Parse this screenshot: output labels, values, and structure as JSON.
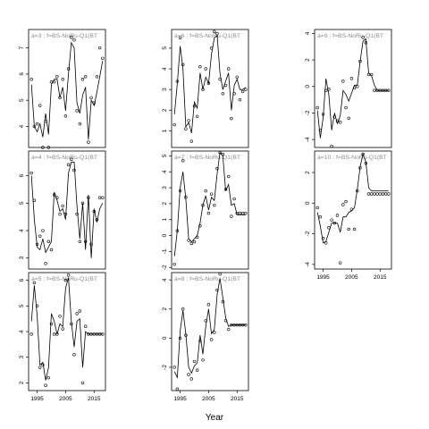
{
  "xlabel": "Year",
  "chart_data": [
    {
      "type": "line",
      "panel": "a=3",
      "title": "a=3 : f=BS-NoRu-Q1(BT",
      "ylim": [
        3.2,
        7.7
      ],
      "yticks": [
        4,
        5,
        6,
        7
      ],
      "xlim": [
        1992,
        2019
      ],
      "xticks": [],
      "grid": false,
      "x": [
        1993,
        1994,
        1995,
        1996,
        1997,
        1998,
        1999,
        2000,
        2001,
        2002,
        2003,
        2004,
        2005,
        2006,
        2007,
        2008,
        2009,
        2010,
        2011,
        2012,
        2013,
        2014,
        2015,
        2016,
        2017,
        2018
      ],
      "observed": [
        5.8,
        4.0,
        4.1,
        4.8,
        3.2,
        4.2,
        3.2,
        5.7,
        5.7,
        5.9,
        5.1,
        5.8,
        4.4,
        6.2,
        7.4,
        7.3,
        4.6,
        4.1,
        5.8,
        5.9,
        3.4,
        5.1,
        4.9,
        5.9,
        7.0,
        6.6
      ],
      "fitted": [
        5.6,
        4.0,
        3.8,
        4.1,
        3.6,
        4.5,
        3.7,
        5.6,
        5.8,
        5.8,
        5.1,
        5.5,
        4.6,
        6.0,
        7.2,
        7.0,
        4.9,
        4.5,
        5.2,
        5.5,
        3.5,
        5.0,
        4.8,
        5.3,
        5.9,
        6.5
      ]
    },
    {
      "type": "line",
      "panel": "a=6",
      "title": "a=6 : f=BS-NoRu-Q1(BT",
      "ylim": [
        0.2,
        5.9
      ],
      "yticks": [
        1,
        2,
        3,
        4,
        5
      ],
      "xlim": [
        1992,
        2019
      ],
      "xticks": [],
      "grid": false,
      "x": [
        1993,
        1994,
        1995,
        1996,
        1997,
        1998,
        1999,
        2000,
        2001,
        2002,
        2003,
        2004,
        2005,
        2006,
        2007,
        2008,
        2009,
        2010,
        2011,
        2012,
        2013,
        2014,
        2015,
        2016,
        2017,
        2018
      ],
      "observed": [
        1.3,
        3.4,
        5.5,
        4.2,
        1.1,
        1.5,
        0.5,
        2.2,
        1.7,
        4.1,
        3.0,
        4.0,
        3.3,
        5.0,
        5.8,
        5.7,
        3.5,
        2.8,
        3.2,
        4.0,
        1.6,
        2.8,
        3.6,
        2.5,
        2.9,
        3.0
      ],
      "fitted": [
        1.8,
        3.3,
        5.1,
        4.0,
        1.2,
        1.4,
        0.9,
        2.4,
        2.1,
        3.8,
        3.0,
        3.6,
        3.3,
        4.7,
        5.5,
        5.6,
        3.8,
        3.0,
        3.4,
        3.8,
        2.0,
        3.2,
        3.5,
        3.0,
        3.0,
        3.1
      ]
    },
    {
      "type": "line",
      "panel": "a=9",
      "title": "a=9 : f=BS-NoRu-Q1(BT",
      "ylim": [
        -4.6,
        4.3
      ],
      "yticks": [
        -4,
        -2,
        0,
        2,
        4
      ],
      "xlim": [
        1992,
        2019
      ],
      "xticks": [],
      "grid": false,
      "x": [
        1993,
        1994,
        1995,
        1996,
        1997,
        1998,
        1999,
        2000,
        2001,
        2002,
        2003,
        2004,
        2005,
        2006,
        2007,
        2008,
        2009,
        2010,
        2011,
        2012,
        2013,
        2014,
        2015,
        2016,
        2017,
        2018
      ],
      "observed": [
        -1.6,
        -3.3,
        -2.1,
        -0.3,
        -0.2,
        -4.5,
        -2.3,
        -2.6,
        -2.7,
        0.4,
        -1.6,
        -2.4,
        0.6,
        -0.1,
        0.0,
        1.9,
        3.7,
        3.3,
        0.9,
        0.9,
        -0.3,
        -0.3,
        -0.3,
        -0.3,
        -0.3,
        -0.3
      ],
      "fitted": [
        -1.8,
        -3.9,
        -2.3,
        0.6,
        -0.6,
        -3.3,
        -2.0,
        -2.8,
        -2.2,
        -0.3,
        -0.6,
        -1.1,
        -0.5,
        0.1,
        0.1,
        1.9,
        3.4,
        3.6,
        1.0,
        0.8,
        0.1,
        -0.3,
        -0.3,
        -0.3,
        -0.3,
        -0.3
      ]
    },
    {
      "type": "line",
      "panel": "a=4",
      "title": "a=4 : f=BS-NoRu-Q1(BT",
      "ylim": [
        2.6,
        6.9
      ],
      "yticks": [
        3,
        4,
        5,
        6
      ],
      "xlim": [
        1992,
        2019
      ],
      "xticks": [],
      "grid": false,
      "x": [
        1993,
        1994,
        1995,
        1996,
        1997,
        1998,
        1999,
        2000,
        2001,
        2002,
        2003,
        2004,
        2005,
        2006,
        2007,
        2008,
        2009,
        2010,
        2011,
        2012,
        2013,
        2014,
        2015,
        2016,
        2017,
        2018
      ],
      "observed": [
        6.1,
        5.1,
        3.5,
        3.8,
        4.0,
        2.8,
        3.6,
        3.3,
        5.3,
        5.2,
        4.6,
        4.9,
        4.6,
        6.4,
        6.6,
        6.2,
        4.6,
        3.6,
        5.0,
        3.6,
        5.2,
        3.5,
        4.7,
        4.4,
        5.2,
        5.2
      ],
      "fitted": [
        6.0,
        4.4,
        3.4,
        3.3,
        3.7,
        3.2,
        3.4,
        3.6,
        5.4,
        5.1,
        4.7,
        4.8,
        4.4,
        6.1,
        6.5,
        6.5,
        4.9,
        3.7,
        5.0,
        3.3,
        5.3,
        3.0,
        4.8,
        4.3,
        4.8,
        5.0
      ]
    },
    {
      "type": "line",
      "panel": "a=7",
      "title": "a=7 : f=BS-NoRu-Q1(BT",
      "ylim": [
        -2.1,
        5.3
      ],
      "yticks": [
        -2,
        -1,
        0,
        1,
        2,
        3,
        4,
        5
      ],
      "xlim": [
        1992,
        2019
      ],
      "xticks": [],
      "grid": false,
      "x": [
        1993,
        1994,
        1995,
        1996,
        1997,
        1998,
        1999,
        2000,
        2001,
        2002,
        2003,
        2004,
        2005,
        2006,
        2007,
        2008,
        2009,
        2010,
        2011,
        2012,
        2013,
        2014,
        2015,
        2016,
        2017,
        2018
      ],
      "observed": [
        -1.8,
        0.3,
        2.8,
        4.7,
        2.4,
        -0.3,
        -0.5,
        -0.4,
        -0.1,
        0.6,
        1.9,
        2.8,
        1.4,
        2.6,
        1.9,
        4.2,
        5.2,
        5.1,
        2.9,
        3.7,
        1.2,
        2.3,
        1.4,
        1.4,
        1.4,
        1.4
      ],
      "fitted": [
        -1.3,
        0.3,
        3.0,
        4.0,
        2.3,
        -0.2,
        -0.4,
        -0.2,
        0.0,
        0.8,
        1.9,
        2.5,
        1.6,
        2.4,
        2.2,
        3.9,
        5.2,
        5.0,
        2.8,
        3.2,
        1.9,
        2.0,
        1.3,
        1.3,
        1.3,
        1.3
      ]
    },
    {
      "type": "line",
      "panel": "a=10",
      "title": "a=10 : f=BS-NoRu-Q1(BT",
      "ylim": [
        -4.3,
        3.4
      ],
      "yticks": [
        -4,
        -2,
        0,
        2
      ],
      "xlim": [
        1992,
        2019
      ],
      "xticks": [
        1995,
        2005,
        2015
      ],
      "grid": false,
      "x": [
        1993,
        1994,
        1995,
        1996,
        1997,
        1998,
        1999,
        2000,
        2001,
        2002,
        2003,
        2004,
        2005,
        2006,
        2007,
        2008,
        2009,
        2010,
        2011,
        2012,
        2013,
        2014,
        2015,
        2016,
        2017,
        2018
      ],
      "observed": [
        -0.3,
        -0.9,
        -2.3,
        -2.6,
        -1.6,
        -1.1,
        -1.3,
        -0.8,
        -3.9,
        -0.1,
        0.1,
        -1.7,
        -0.4,
        -1.7,
        0.8,
        2.3,
        3.2,
        2.6,
        0.6,
        0.6,
        0.6,
        0.6,
        0.6,
        0.6,
        0.6,
        0.6
      ],
      "fitted": [
        -0.6,
        -1.5,
        -2.6,
        -2.5,
        -1.9,
        -1.3,
        -1.3,
        -1.3,
        -1.9,
        -0.9,
        -0.9,
        -0.6,
        -0.5,
        -0.3,
        0.9,
        2.4,
        3.2,
        2.7,
        1.0,
        0.8,
        0.8,
        0.8,
        0.8,
        0.8,
        0.8,
        0.8
      ]
    },
    {
      "type": "line",
      "panel": "a=5",
      "title": "a=5 : f=BS-NoRu-Q1(BT",
      "ylim": [
        1.7,
        6.3
      ],
      "yticks": [
        2,
        3,
        4,
        5,
        6
      ],
      "xlim": [
        1992,
        2019
      ],
      "xticks": [
        1995,
        2005,
        2015
      ],
      "grid": false,
      "x": [
        1993,
        1994,
        1995,
        1996,
        1997,
        1998,
        1999,
        2000,
        2001,
        2002,
        2003,
        2004,
        2005,
        2006,
        2007,
        2008,
        2009,
        2010,
        2011,
        2012,
        2013,
        2014,
        2015,
        2016,
        2017,
        2018
      ],
      "observed": [
        3.9,
        5.9,
        5.0,
        2.6,
        2.7,
        1.9,
        2.2,
        4.3,
        3.9,
        3.9,
        4.6,
        4.1,
        6.0,
        6.2,
        4.3,
        3.1,
        4.7,
        4.8,
        2.0,
        4.2,
        3.9,
        3.9,
        3.9,
        3.9,
        3.9,
        3.9
      ],
      "fitted": [
        4.4,
        5.8,
        4.6,
        2.7,
        2.8,
        2.1,
        2.6,
        4.7,
        4.4,
        3.9,
        4.3,
        4.2,
        5.7,
        6.1,
        4.4,
        3.4,
        4.4,
        4.5,
        2.6,
        4.0,
        3.9,
        3.9,
        3.9,
        3.9,
        3.9,
        3.9
      ]
    },
    {
      "type": "line",
      "panel": "a=8",
      "title": "a=8 : f=BS-NoRu-Q1(BT",
      "ylim": [
        -3.6,
        4.5
      ],
      "yticks": [
        -2,
        0,
        2,
        4
      ],
      "xlim": [
        1992,
        2019
      ],
      "xticks": [
        1995,
        2005,
        2015
      ],
      "grid": false,
      "x": [
        1993,
        1994,
        1995,
        1996,
        1997,
        1998,
        1999,
        2000,
        2001,
        2002,
        2003,
        2004,
        2005,
        2006,
        2007,
        2008,
        2009,
        2010,
        2011,
        2012,
        2013,
        2014,
        2015,
        2016,
        2017,
        2018
      ],
      "observed": [
        -2.0,
        -3.5,
        0.0,
        2.0,
        0.2,
        -2.5,
        -2.8,
        -1.6,
        -2.2,
        -0.2,
        -1.5,
        1.2,
        2.3,
        -0.1,
        0.4,
        3.3,
        4.4,
        2.5,
        1.2,
        0.6,
        0.9,
        0.9,
        0.9,
        0.9,
        0.9,
        0.9
      ],
      "fitted": [
        -2.3,
        -2.7,
        0.5,
        1.9,
        0.3,
        -2.0,
        -2.4,
        -1.9,
        -1.7,
        0.2,
        -1.1,
        0.8,
        2.0,
        0.3,
        0.6,
        3.0,
        4.1,
        2.8,
        1.4,
        0.8,
        0.9,
        0.9,
        0.9,
        0.9,
        0.9,
        0.9
      ]
    }
  ]
}
